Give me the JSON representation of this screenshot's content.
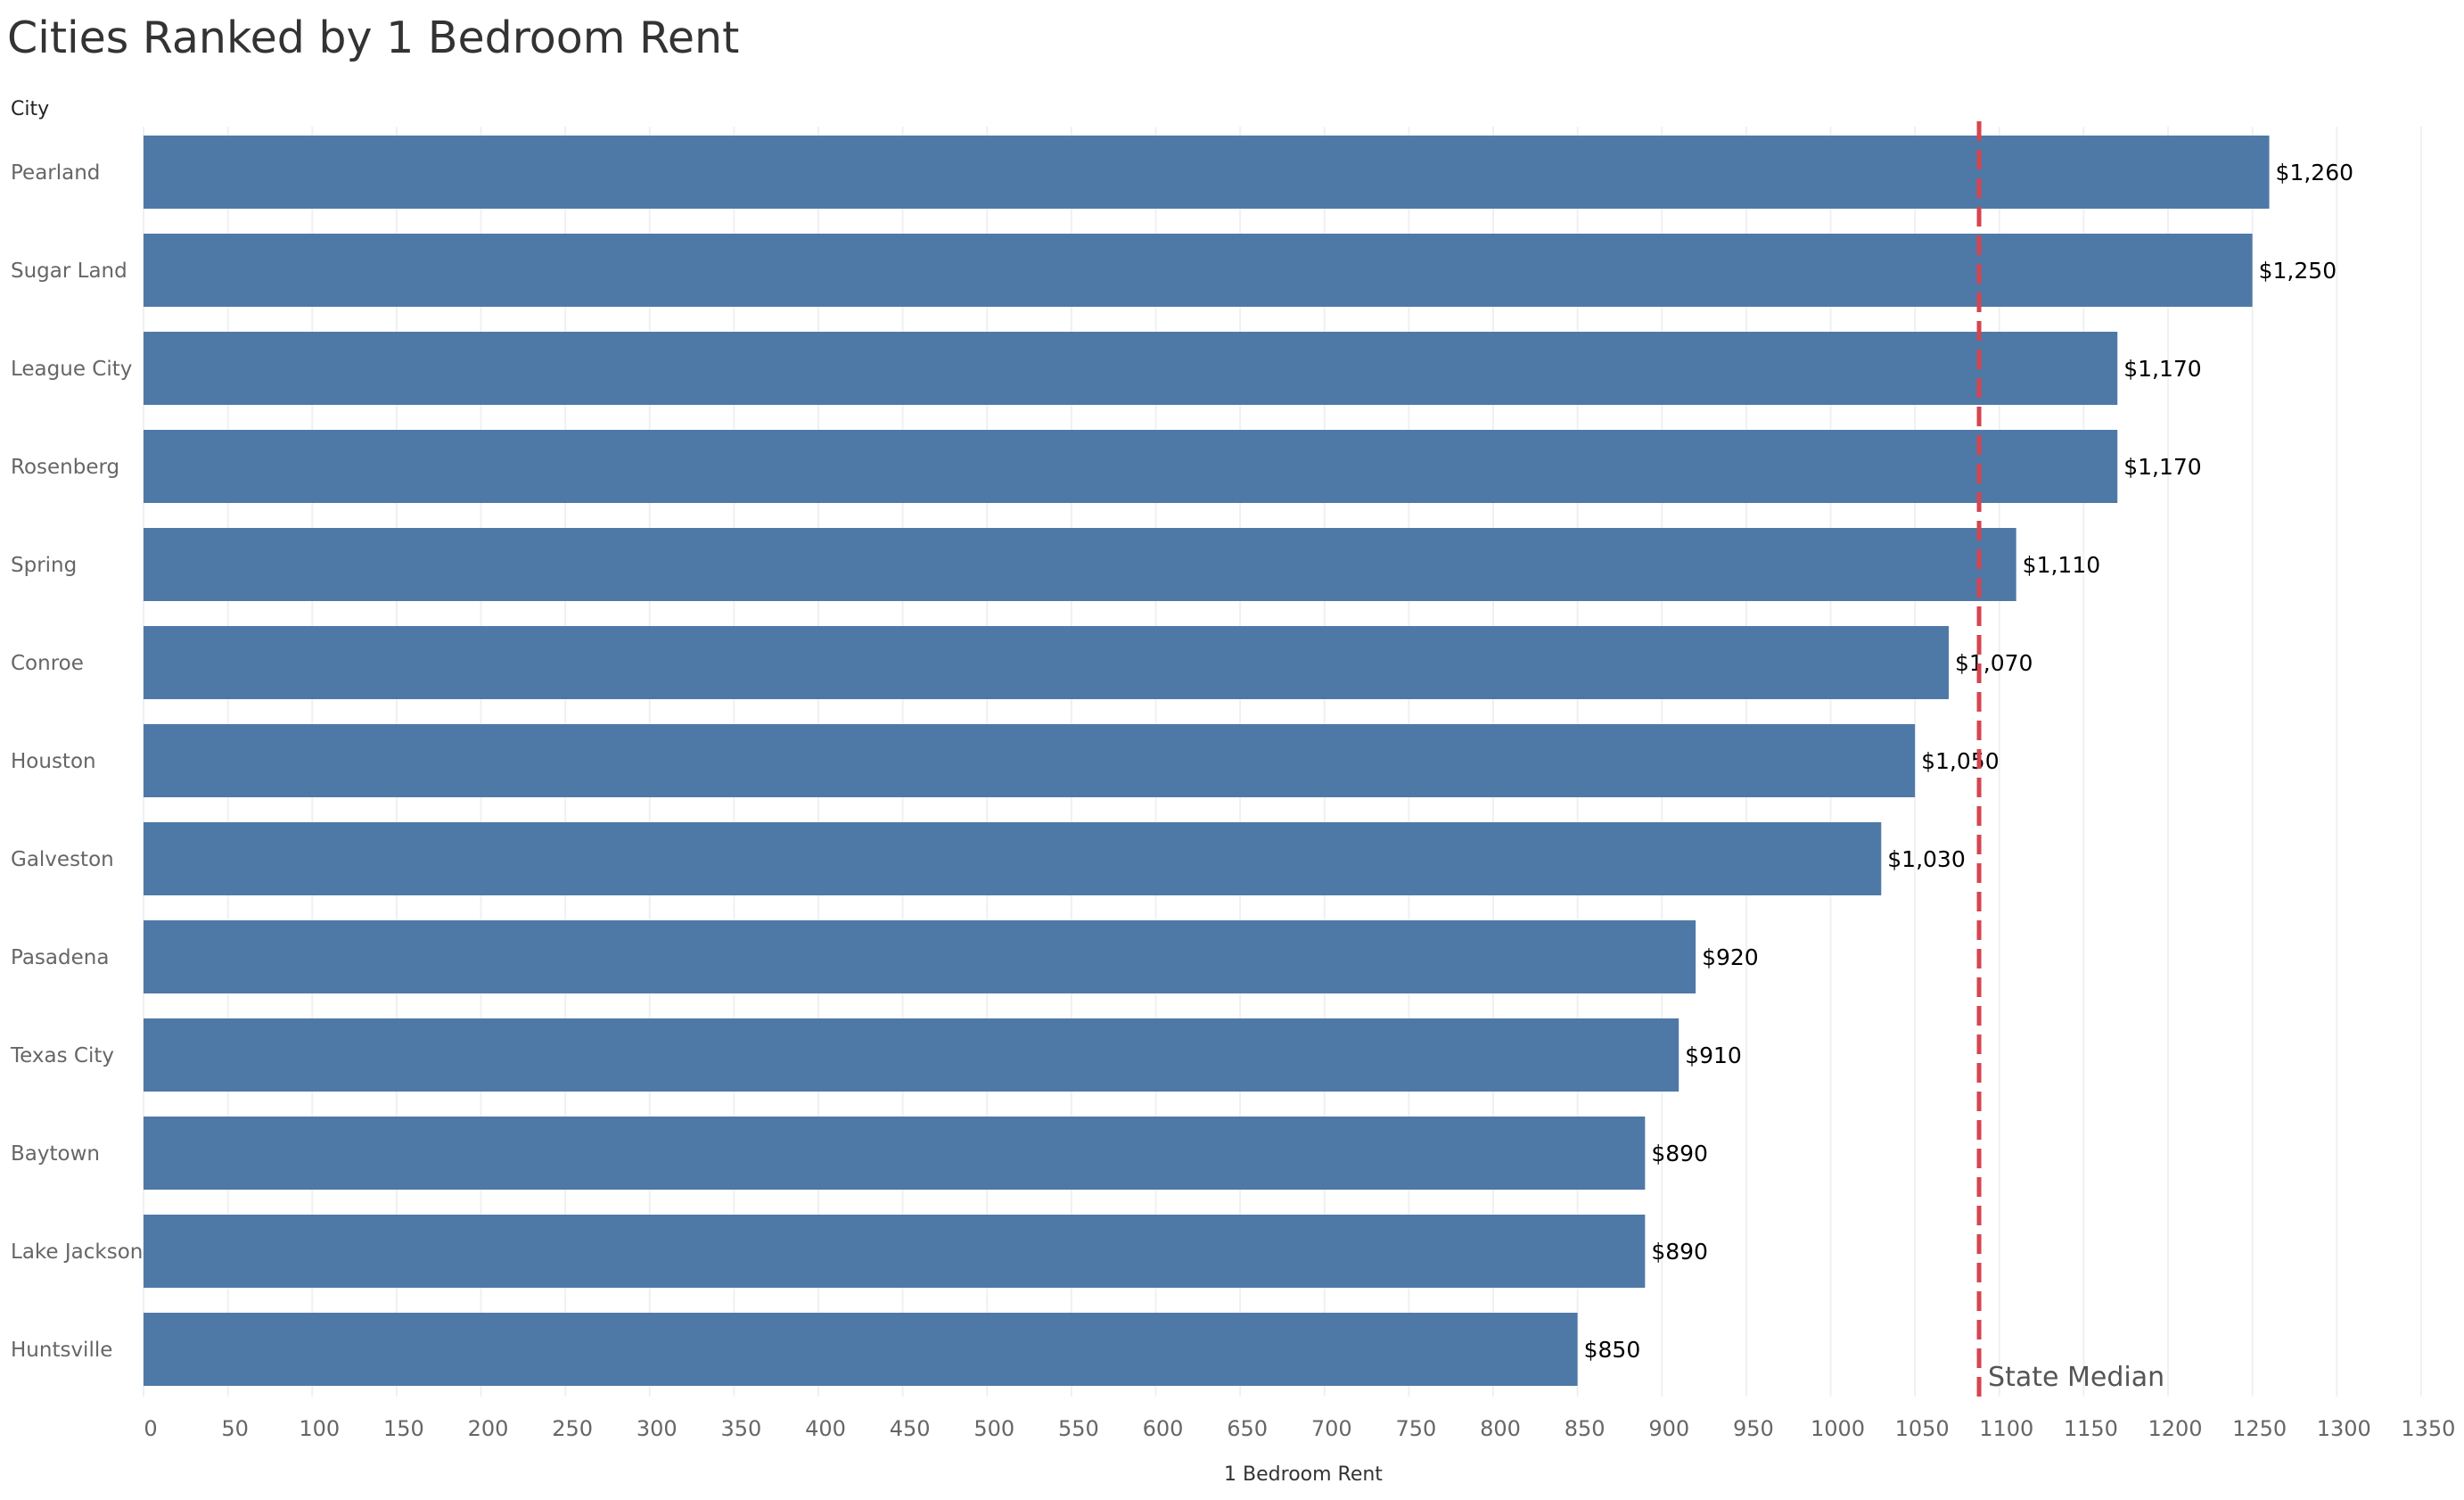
{
  "chart_data": {
    "type": "bar",
    "orientation": "horizontal",
    "title": "Cities Ranked by 1 Bedroom Rent",
    "row_header": "City",
    "xlabel": "1 Bedroom Rent",
    "ylabel": "City",
    "categories": [
      "Pearland",
      "Sugar Land",
      "League City",
      "Rosenberg",
      "Spring",
      "Conroe",
      "Houston",
      "Galveston",
      "Pasadena",
      "Texas City",
      "Baytown",
      "Lake Jackson",
      "Huntsville"
    ],
    "values": [
      1260,
      1250,
      1170,
      1170,
      1110,
      1070,
      1050,
      1030,
      920,
      910,
      890,
      890,
      850
    ],
    "data_labels": [
      "$1,260",
      "$1,250",
      "$1,170",
      "$1,170",
      "$1,110",
      "$1,070",
      "$1,050",
      "$1,030",
      "$920",
      "$910",
      "$890",
      "$890",
      "$850"
    ],
    "xlim": [
      0,
      1350
    ],
    "x_ticks": [
      0,
      50,
      100,
      150,
      200,
      250,
      300,
      350,
      400,
      450,
      500,
      550,
      600,
      650,
      700,
      750,
      800,
      850,
      900,
      950,
      1000,
      1050,
      1100,
      1150,
      1200,
      1250,
      1300,
      1350
    ],
    "reference_line": {
      "label": "State Median",
      "value": 1088,
      "style": "dashed",
      "color": "#d64550"
    },
    "grid": true,
    "colors": {
      "bar": "#4e79a7",
      "grid": "#f0f0f0",
      "reference": "#d64550"
    }
  }
}
